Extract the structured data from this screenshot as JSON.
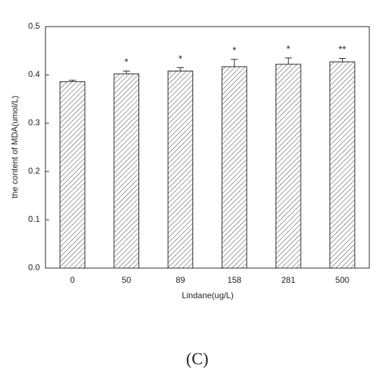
{
  "chart_data": {
    "type": "bar",
    "x_label": "Lindane(ug/L)",
    "y_label": "the content of MDA(umol/L)",
    "panel_label": "(C)",
    "categories": [
      "0",
      "50",
      "89",
      "158",
      "281",
      "500"
    ],
    "values": [
      0.386,
      0.402,
      0.408,
      0.417,
      0.422,
      0.427
    ],
    "errors": [
      0.003,
      0.006,
      0.007,
      0.015,
      0.013,
      0.007
    ],
    "annotations": [
      null,
      "*",
      "*",
      "*",
      "*",
      "**"
    ],
    "color": "#555555",
    "ylim": [
      0,
      0.5
    ],
    "yticks": [
      {
        "value": 0,
        "label": "0.0"
      },
      0.1,
      0.2,
      0.3,
      0.4,
      {
        "value": 0.5,
        "label": "0.5"
      }
    ]
  }
}
